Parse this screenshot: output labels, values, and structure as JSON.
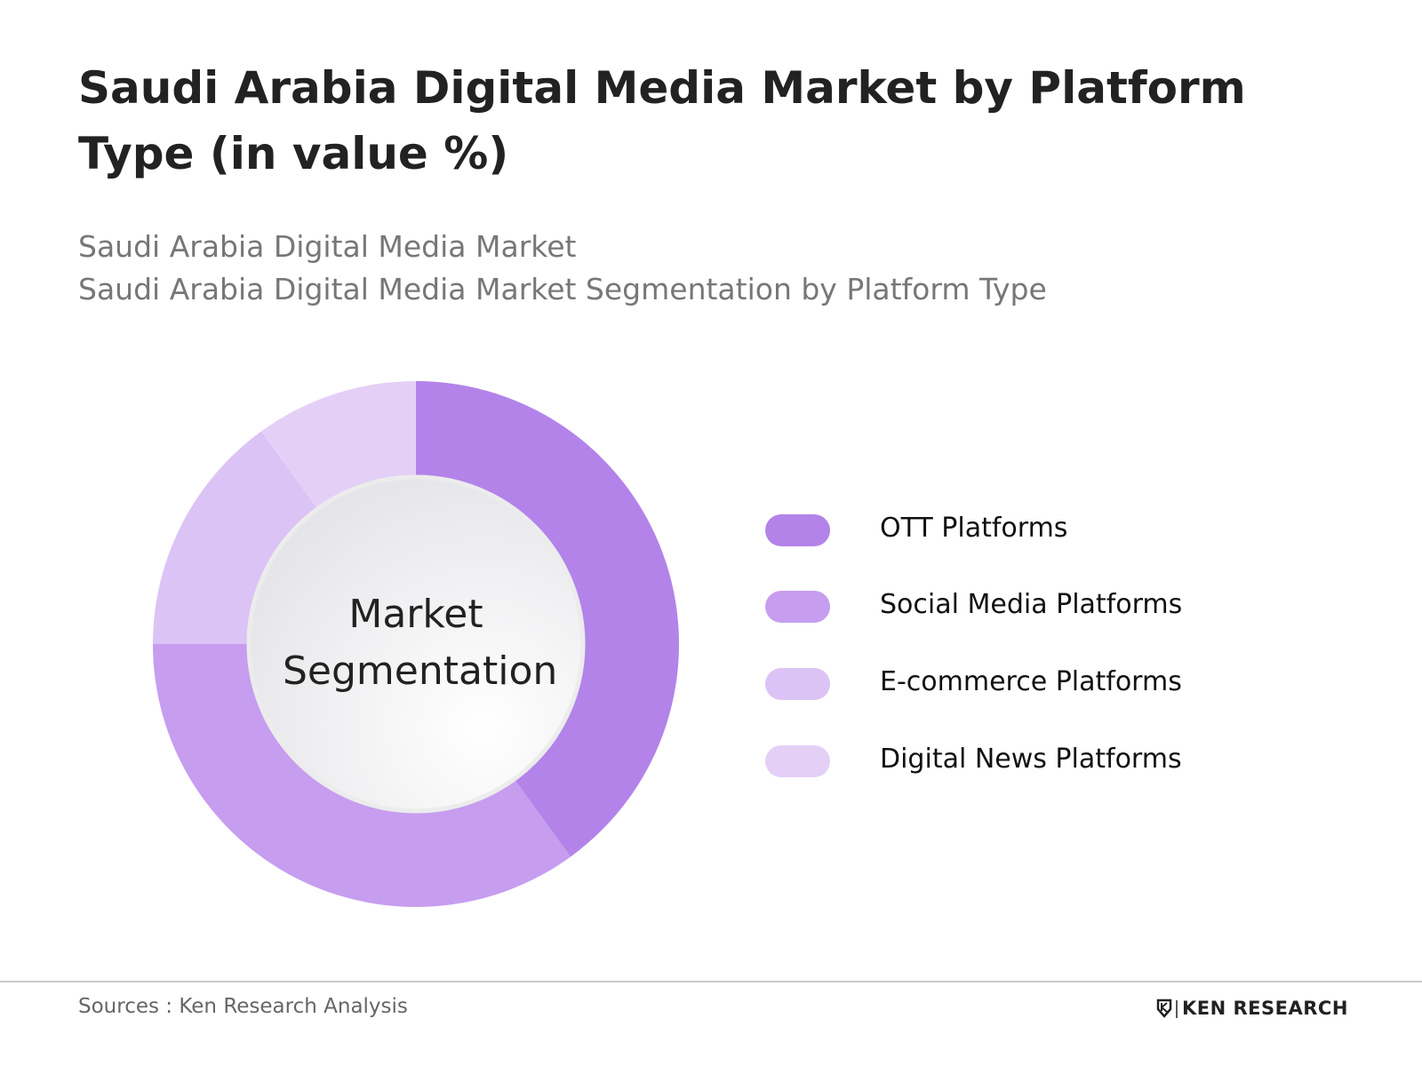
{
  "chart_data": {
    "type": "pie",
    "title": "Saudi Arabia Digital Media Market by Platform Type (in value %)",
    "subtitle": [
      "Saudi Arabia Digital Media Market",
      "Saudi Arabia Digital Media Market Segmentation by Platform Type"
    ],
    "center_label": "Market Segmentation",
    "categories": [
      "OTT Platforms",
      "Social Media Platforms",
      "E-commerce Platforms",
      "Digital News Platforms"
    ],
    "values": [
      40,
      35,
      15,
      10
    ],
    "colors": [
      "#b383e9",
      "#c79def",
      "#dcc3f5",
      "#e4d0f7"
    ],
    "donut": true
  },
  "footer": {
    "source": "Sources : Ken Research Analysis",
    "logo": "KEN RESEARCH"
  }
}
